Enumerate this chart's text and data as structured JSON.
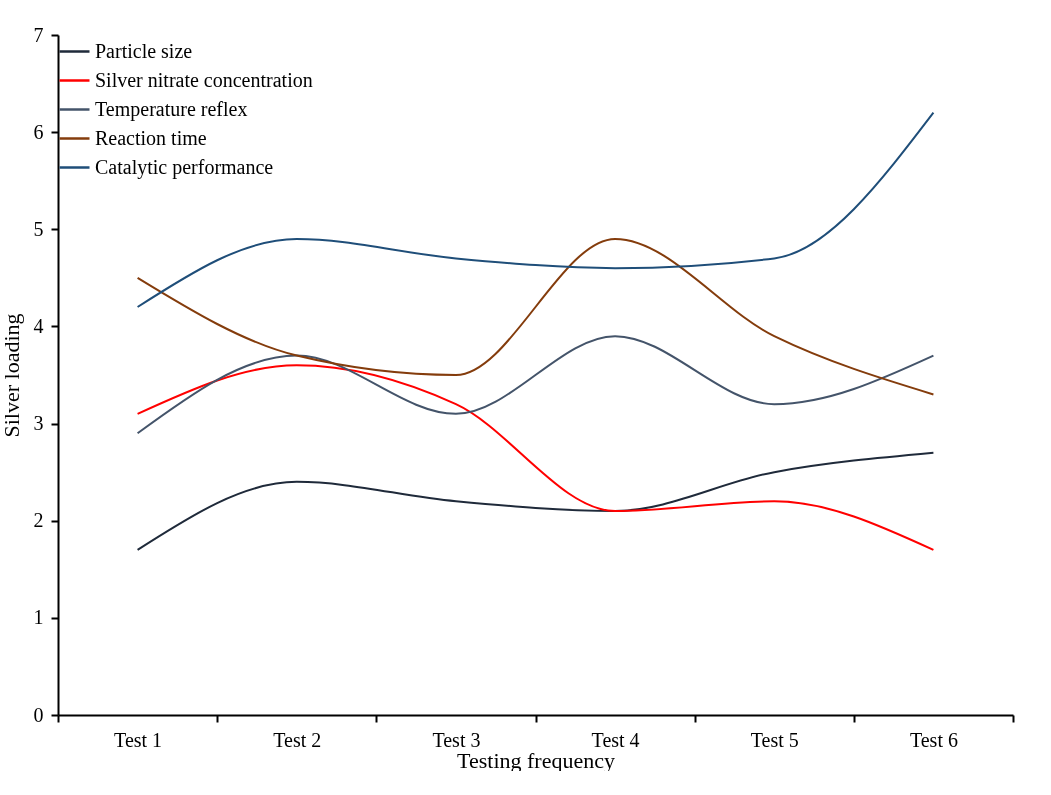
{
  "chart_data": {
    "type": "line",
    "xlabel": "Testing frequency",
    "ylabel": "Silver loading",
    "categories": [
      "Test 1",
      "Test 2",
      "Test 3",
      "Test 4",
      "Test 5",
      "Test 6"
    ],
    "series": [
      {
        "name": "Particle size",
        "color": "#1f2a3a",
        "values": [
          1.7,
          2.4,
          2.2,
          2.1,
          2.5,
          2.7
        ]
      },
      {
        "name": "Silver nitrate concentration",
        "color": "#ff0000",
        "values": [
          3.1,
          3.6,
          3.2,
          2.1,
          2.2,
          1.7
        ]
      },
      {
        "name": "Temperature reflex",
        "color": "#44546a",
        "values": [
          2.9,
          3.7,
          3.1,
          3.9,
          3.2,
          3.7
        ]
      },
      {
        "name": "Reaction time",
        "color": "#843c0c",
        "values": [
          4.5,
          3.7,
          3.5,
          4.9,
          3.9,
          3.3
        ]
      },
      {
        "name": "Catalytic performance",
        "color": "#1f4e79",
        "values": [
          4.2,
          4.9,
          4.7,
          4.6,
          4.7,
          6.2
        ]
      }
    ],
    "ylim": [
      0,
      7
    ],
    "yticks": [
      0,
      1,
      2,
      3,
      4,
      5,
      6,
      7
    ],
    "grid": false,
    "legend": "top left",
    "marker": "none",
    "line_style": "solid"
  }
}
